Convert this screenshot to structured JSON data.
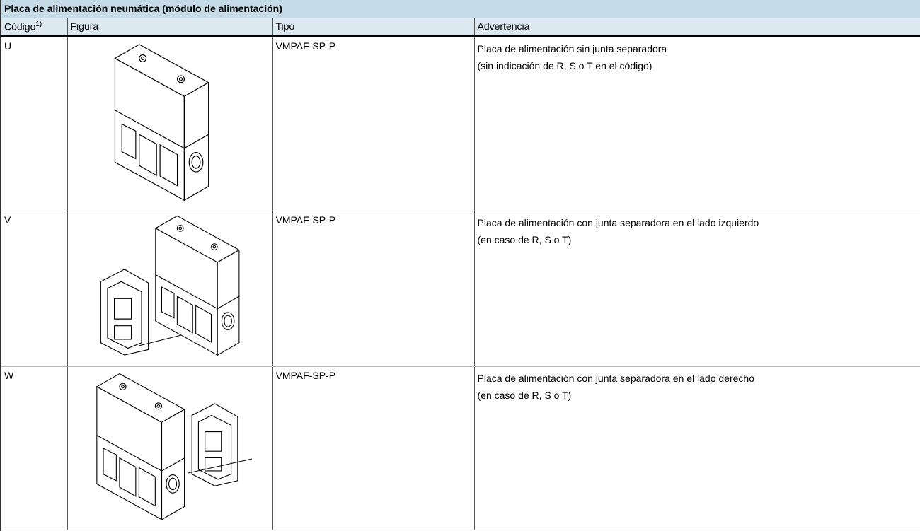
{
  "header": {
    "title": "Placa de alimentación neumática (módulo de alimentación)"
  },
  "table": {
    "headers": [
      "Código",
      "Figura",
      "Tipo",
      "Advertencia"
    ],
    "header_note": "1)",
    "rows": [
      {
        "code": "U",
        "type": "VMPAF-SP-P",
        "notes": [
          "Placa de alimentación sin junta separadora",
          "(sin indicación de R, S o T en el código)"
        ]
      },
      {
        "code": "V",
        "type": "VMPAF-SP-P",
        "notes": [
          "Placa de alimentación con junta separadora en el lado izquierdo",
          "(en caso de R, S o T)"
        ]
      },
      {
        "code": "W",
        "type": "VMPAF-SP-P",
        "notes": [
          "Placa de alimentación con junta separadora en el lado derecho",
          "(en caso de R, S o T)"
        ]
      }
    ]
  }
}
